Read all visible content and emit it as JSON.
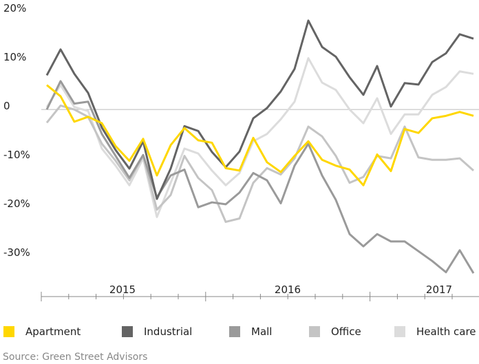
{
  "chart_data": {
    "type": "line",
    "categories": [
      null,
      null,
      null,
      null,
      null,
      null,
      "2015",
      null,
      null,
      null,
      null,
      null,
      null,
      null,
      null,
      null,
      null,
      null,
      "2016",
      null,
      null,
      null,
      null,
      null,
      null,
      null,
      null,
      null,
      null,
      "2017",
      null,
      null
    ],
    "ylim": [
      -38,
      21
    ],
    "yticks": [
      {
        "value": 20,
        "label": "20%"
      },
      {
        "value": 10,
        "label": "10%"
      },
      0,
      {
        "value": -10,
        "label": "-10%"
      },
      {
        "value": -20,
        "label": "-20%"
      },
      {
        "value": -30,
        "label": "-30%"
      }
    ],
    "zero_line": true,
    "series": [
      {
        "name": "Health care",
        "color": "#dcdcdc",
        "values": [
          0.5,
          5,
          0.5,
          -0.3,
          -8,
          -11.5,
          -15.5,
          -10,
          -22,
          -15,
          -8,
          -9,
          -12.5,
          -15.5,
          -13,
          -6.5,
          -5,
          -2,
          1.6,
          10.5,
          5.5,
          4,
          0,
          -2.8,
          2.3,
          -5,
          -1,
          -1,
          3,
          4.6,
          7.8,
          7.3
        ]
      },
      {
        "name": "Office",
        "color": "#c4c4c4",
        "values": [
          -2.7,
          0.8,
          0,
          -1.5,
          -7,
          -10.5,
          -14.5,
          -9.5,
          -20.5,
          -17.5,
          -9.5,
          -14,
          -16.5,
          -23,
          -22.3,
          -15,
          -12,
          -13.3,
          -10,
          -3.5,
          -5.5,
          -9.5,
          -15,
          -13.8,
          -9.5,
          -10,
          -3.5,
          -9.8,
          -10.3,
          -10.3,
          -10,
          -12.5
        ]
      },
      {
        "name": "Mall",
        "color": "#9a9a9a",
        "values": [
          0,
          5.8,
          1.2,
          1.6,
          -5,
          -9.5,
          -14,
          -9.3,
          -18,
          -13.5,
          -12.3,
          -20,
          -19,
          -19.4,
          -17,
          -13,
          -14.5,
          -19.2,
          -11.5,
          -7,
          -13.5,
          -18.5,
          -25.5,
          -28,
          -25.5,
          -27,
          -27,
          -29,
          -31,
          -33.3,
          -28.8,
          -33.5
        ]
      },
      {
        "name": "Industrial",
        "color": "#646464",
        "values": [
          7,
          12.3,
          7.3,
          3.4,
          -3.7,
          -8.3,
          -12.1,
          -6.5,
          -18.3,
          -12.1,
          -3.4,
          -4.4,
          -8.7,
          -11.8,
          -8.6,
          -1.8,
          0.3,
          3.7,
          8.3,
          18.2,
          12.8,
          10.8,
          6.6,
          3,
          8.9,
          0.6,
          5.4,
          5.1,
          9.7,
          11.5,
          15.4,
          14.5
        ]
      },
      {
        "name": "Apartment",
        "color": "#ffd700",
        "values": [
          5,
          2.7,
          -2.5,
          -1.5,
          -2.8,
          -7.5,
          -10.5,
          -6,
          -13.5,
          -7.3,
          -3.8,
          -6.3,
          -6.8,
          -12,
          -12.5,
          -5.8,
          -10.8,
          -12.8,
          -9.5,
          -6.5,
          -10.3,
          -11.5,
          -12.3,
          -15.5,
          -9.2,
          -12.6,
          -4,
          -4.8,
          -1.8,
          -1.3,
          -0.5,
          -1.3
        ]
      }
    ],
    "legend_order": [
      4,
      3,
      2,
      1,
      0
    ],
    "source": "Source: Green Street Advisors"
  }
}
